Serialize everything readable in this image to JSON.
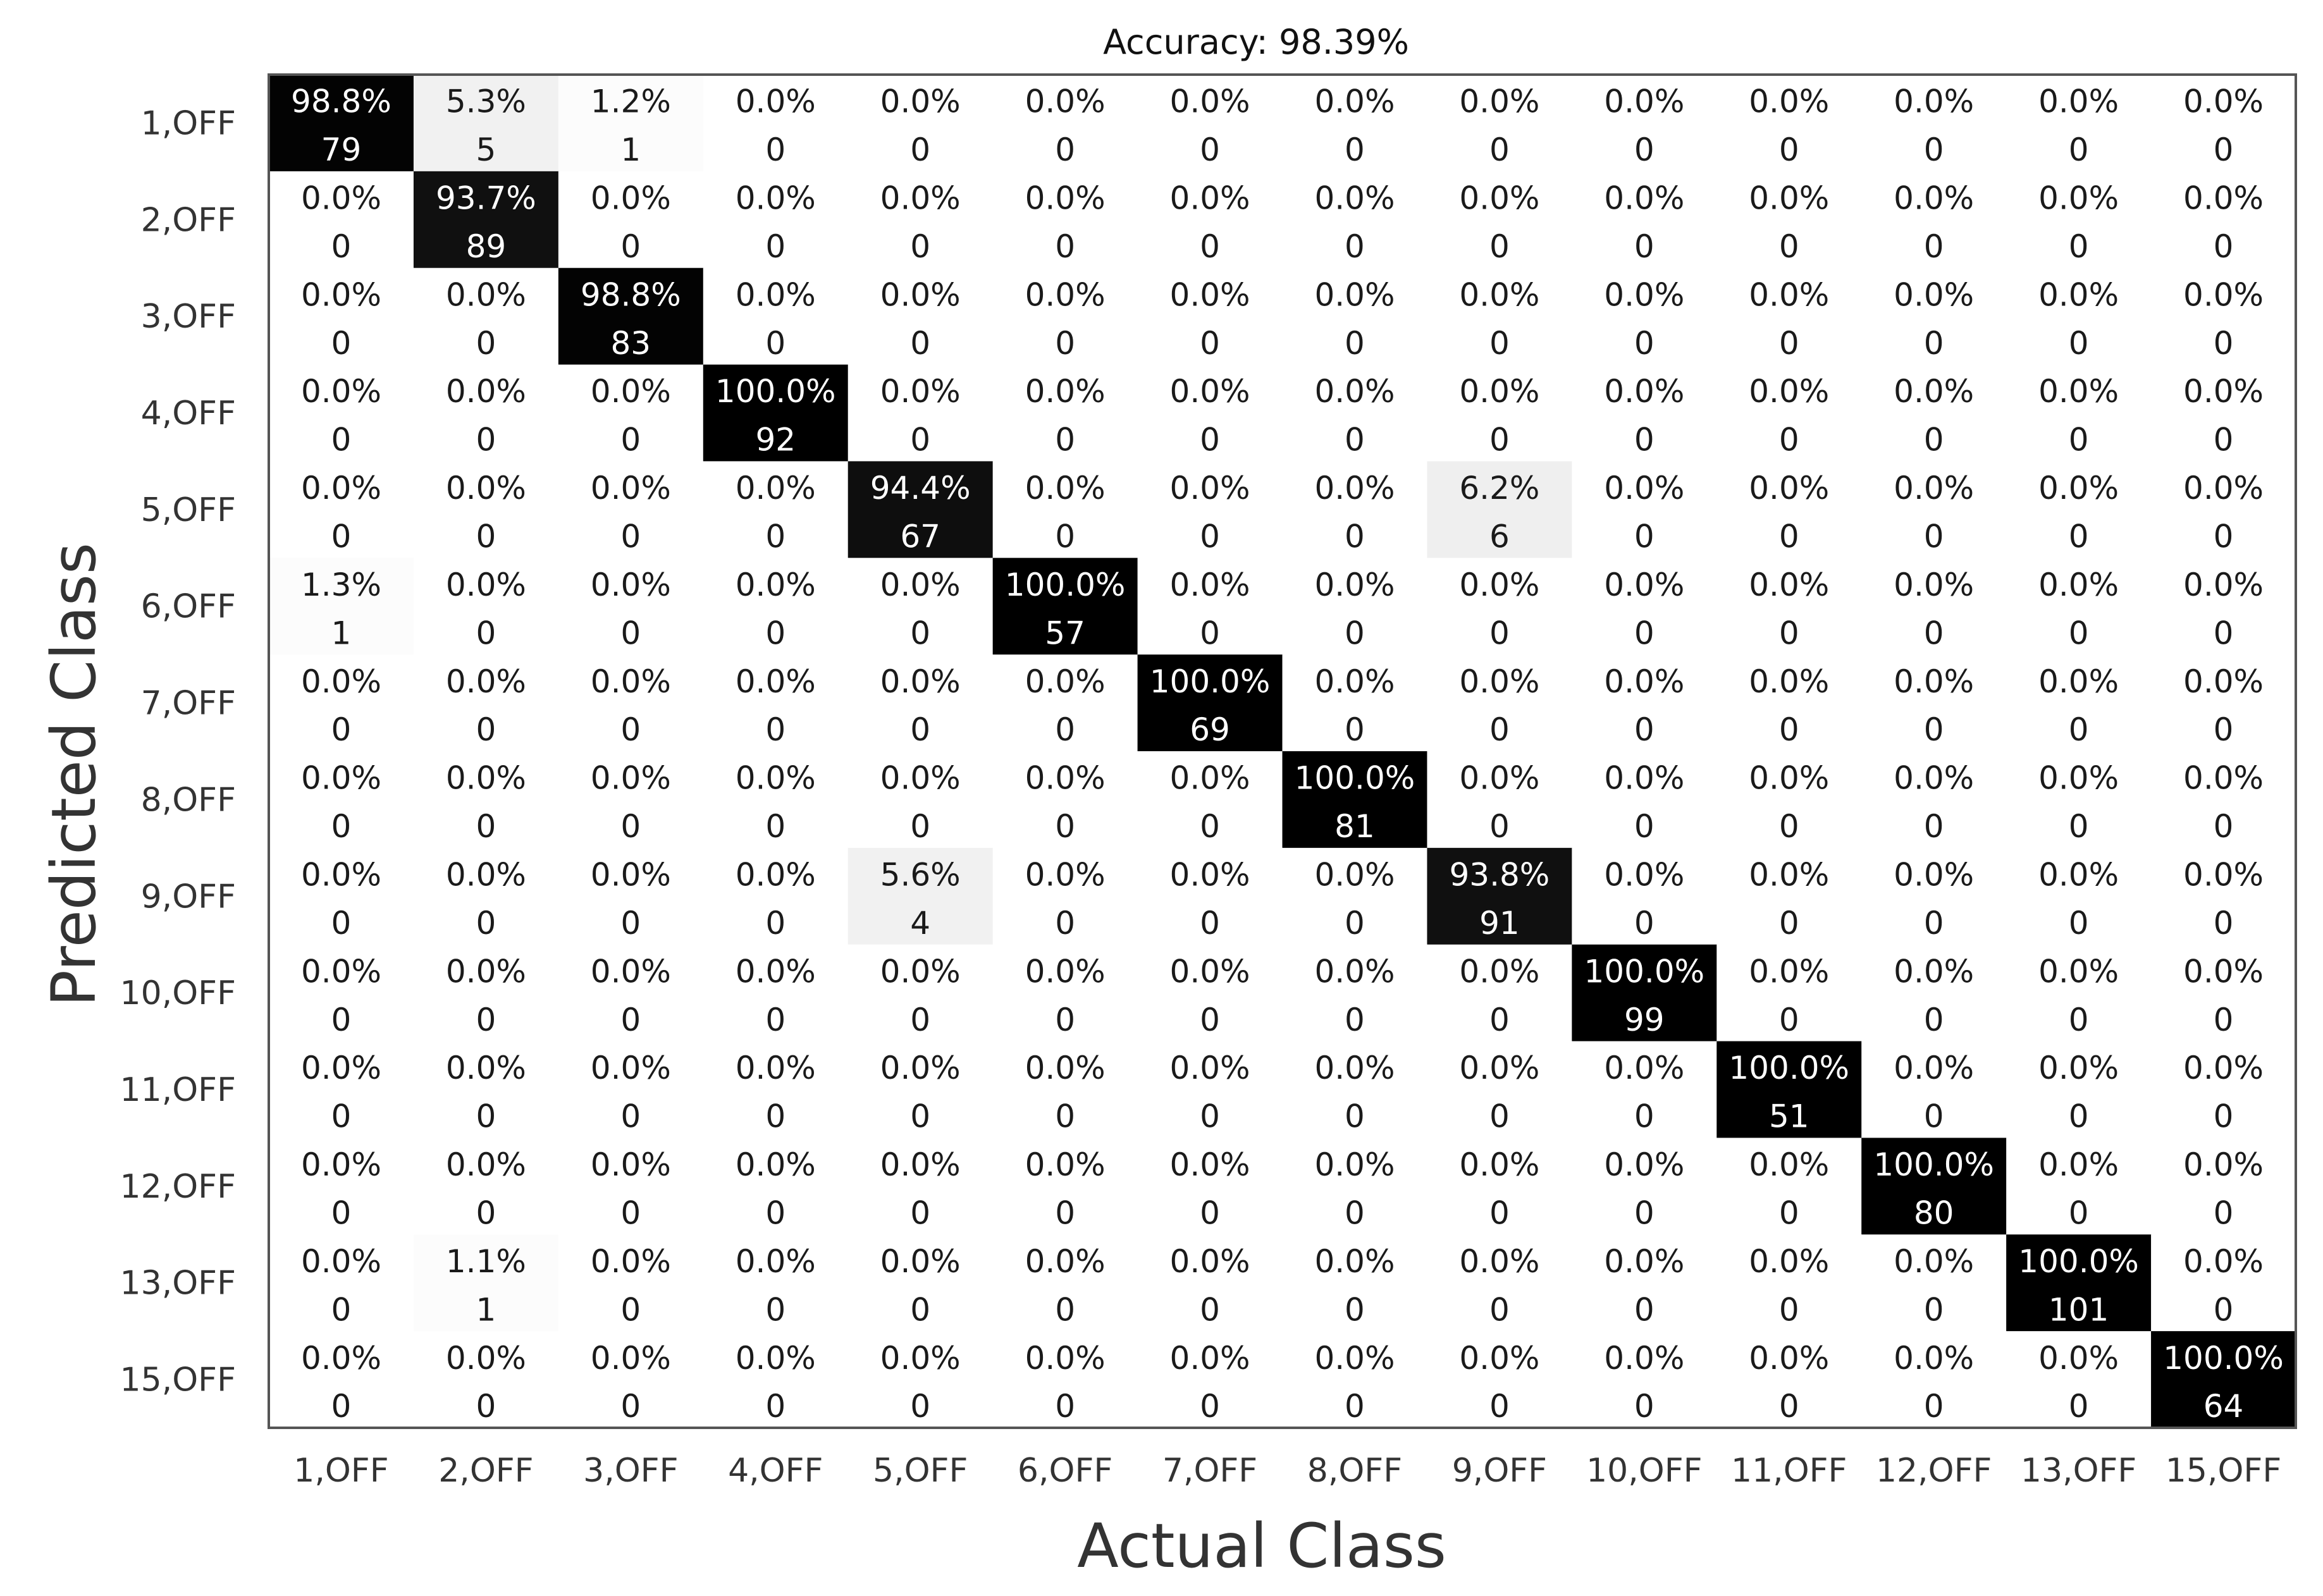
{
  "chart_data": {
    "type": "heatmap",
    "title": "Accuracy: 98.39%",
    "xlabel": "Actual Class",
    "ylabel": "Predicted Class",
    "x_categories": [
      "1,OFF",
      "2,OFF",
      "3,OFF",
      "4,OFF",
      "5,OFF",
      "6,OFF",
      "7,OFF",
      "8,OFF",
      "9,OFF",
      "10,OFF",
      "11,OFF",
      "12,OFF",
      "13,OFF",
      "15,OFF"
    ],
    "y_categories": [
      "1,OFF",
      "2,OFF",
      "3,OFF",
      "4,OFF",
      "5,OFF",
      "6,OFF",
      "7,OFF",
      "8,OFF",
      "9,OFF",
      "10,OFF",
      "11,OFF",
      "12,OFF",
      "13,OFF",
      "15,OFF"
    ],
    "counts": [
      [
        79,
        5,
        1,
        0,
        0,
        0,
        0,
        0,
        0,
        0,
        0,
        0,
        0,
        0
      ],
      [
        0,
        89,
        0,
        0,
        0,
        0,
        0,
        0,
        0,
        0,
        0,
        0,
        0,
        0
      ],
      [
        0,
        0,
        83,
        0,
        0,
        0,
        0,
        0,
        0,
        0,
        0,
        0,
        0,
        0
      ],
      [
        0,
        0,
        0,
        92,
        0,
        0,
        0,
        0,
        0,
        0,
        0,
        0,
        0,
        0
      ],
      [
        0,
        0,
        0,
        0,
        67,
        0,
        0,
        0,
        6,
        0,
        0,
        0,
        0,
        0
      ],
      [
        1,
        0,
        0,
        0,
        0,
        57,
        0,
        0,
        0,
        0,
        0,
        0,
        0,
        0
      ],
      [
        0,
        0,
        0,
        0,
        0,
        0,
        69,
        0,
        0,
        0,
        0,
        0,
        0,
        0
      ],
      [
        0,
        0,
        0,
        0,
        0,
        0,
        0,
        81,
        0,
        0,
        0,
        0,
        0,
        0
      ],
      [
        0,
        0,
        0,
        0,
        4,
        0,
        0,
        0,
        91,
        0,
        0,
        0,
        0,
        0
      ],
      [
        0,
        0,
        0,
        0,
        0,
        0,
        0,
        0,
        0,
        99,
        0,
        0,
        0,
        0
      ],
      [
        0,
        0,
        0,
        0,
        0,
        0,
        0,
        0,
        0,
        0,
        51,
        0,
        0,
        0
      ],
      [
        0,
        0,
        0,
        0,
        0,
        0,
        0,
        0,
        0,
        0,
        0,
        80,
        0,
        0
      ],
      [
        0,
        1,
        0,
        0,
        0,
        0,
        0,
        0,
        0,
        0,
        0,
        0,
        101,
        0
      ],
      [
        0,
        0,
        0,
        0,
        0,
        0,
        0,
        0,
        0,
        0,
        0,
        0,
        0,
        64
      ]
    ],
    "percentages": [
      [
        "98.8%",
        "5.3%",
        "1.2%",
        "0.0%",
        "0.0%",
        "0.0%",
        "0.0%",
        "0.0%",
        "0.0%",
        "0.0%",
        "0.0%",
        "0.0%",
        "0.0%",
        "0.0%"
      ],
      [
        "0.0%",
        "93.7%",
        "0.0%",
        "0.0%",
        "0.0%",
        "0.0%",
        "0.0%",
        "0.0%",
        "0.0%",
        "0.0%",
        "0.0%",
        "0.0%",
        "0.0%",
        "0.0%"
      ],
      [
        "0.0%",
        "0.0%",
        "98.8%",
        "0.0%",
        "0.0%",
        "0.0%",
        "0.0%",
        "0.0%",
        "0.0%",
        "0.0%",
        "0.0%",
        "0.0%",
        "0.0%",
        "0.0%"
      ],
      [
        "0.0%",
        "0.0%",
        "0.0%",
        "100.0%",
        "0.0%",
        "0.0%",
        "0.0%",
        "0.0%",
        "0.0%",
        "0.0%",
        "0.0%",
        "0.0%",
        "0.0%",
        "0.0%"
      ],
      [
        "0.0%",
        "0.0%",
        "0.0%",
        "0.0%",
        "94.4%",
        "0.0%",
        "0.0%",
        "0.0%",
        "6.2%",
        "0.0%",
        "0.0%",
        "0.0%",
        "0.0%",
        "0.0%"
      ],
      [
        "1.3%",
        "0.0%",
        "0.0%",
        "0.0%",
        "0.0%",
        "100.0%",
        "0.0%",
        "0.0%",
        "0.0%",
        "0.0%",
        "0.0%",
        "0.0%",
        "0.0%",
        "0.0%"
      ],
      [
        "0.0%",
        "0.0%",
        "0.0%",
        "0.0%",
        "0.0%",
        "0.0%",
        "100.0%",
        "0.0%",
        "0.0%",
        "0.0%",
        "0.0%",
        "0.0%",
        "0.0%",
        "0.0%"
      ],
      [
        "0.0%",
        "0.0%",
        "0.0%",
        "0.0%",
        "0.0%",
        "0.0%",
        "0.0%",
        "100.0%",
        "0.0%",
        "0.0%",
        "0.0%",
        "0.0%",
        "0.0%",
        "0.0%"
      ],
      [
        "0.0%",
        "0.0%",
        "0.0%",
        "0.0%",
        "5.6%",
        "0.0%",
        "0.0%",
        "0.0%",
        "93.8%",
        "0.0%",
        "0.0%",
        "0.0%",
        "0.0%",
        "0.0%"
      ],
      [
        "0.0%",
        "0.0%",
        "0.0%",
        "0.0%",
        "0.0%",
        "0.0%",
        "0.0%",
        "0.0%",
        "0.0%",
        "100.0%",
        "0.0%",
        "0.0%",
        "0.0%",
        "0.0%"
      ],
      [
        "0.0%",
        "0.0%",
        "0.0%",
        "0.0%",
        "0.0%",
        "0.0%",
        "0.0%",
        "0.0%",
        "0.0%",
        "0.0%",
        "100.0%",
        "0.0%",
        "0.0%",
        "0.0%"
      ],
      [
        "0.0%",
        "0.0%",
        "0.0%",
        "0.0%",
        "0.0%",
        "0.0%",
        "0.0%",
        "0.0%",
        "0.0%",
        "0.0%",
        "0.0%",
        "100.0%",
        "0.0%",
        "0.0%"
      ],
      [
        "0.0%",
        "1.1%",
        "0.0%",
        "0.0%",
        "0.0%",
        "0.0%",
        "0.0%",
        "0.0%",
        "0.0%",
        "0.0%",
        "0.0%",
        "0.0%",
        "100.0%",
        "0.0%"
      ],
      [
        "0.0%",
        "0.0%",
        "0.0%",
        "0.0%",
        "0.0%",
        "0.0%",
        "0.0%",
        "0.0%",
        "0.0%",
        "0.0%",
        "0.0%",
        "0.0%",
        "0.0%",
        "100.0%"
      ]
    ],
    "colors": {
      "high": "#000000",
      "low": "#ffffff",
      "border": "#555555",
      "text_dark": "#1a1a1a",
      "text_light": "#ffffff"
    }
  }
}
